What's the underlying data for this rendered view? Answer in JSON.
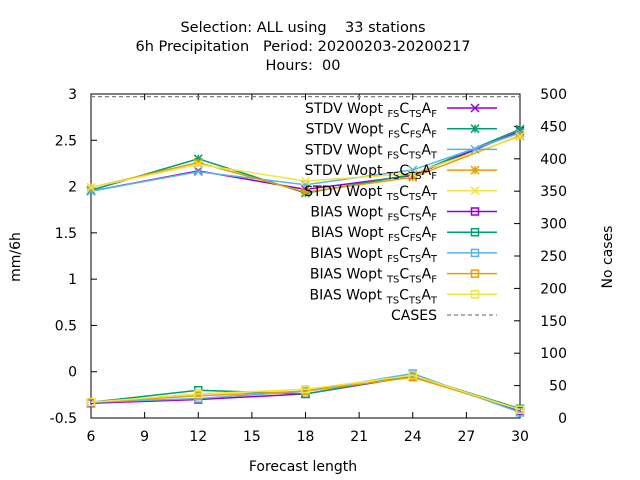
{
  "chart_data": {
    "type": "line",
    "title_lines": [
      "Selection: ALL using    33 stations",
      "6h Precipitation   Period: 20200203-20200217",
      "Hours:  00"
    ],
    "xlabel": "Forecast length",
    "ylabel": "mm/6h",
    "y2label": "No cases",
    "x": [
      6,
      12,
      18,
      24,
      30
    ],
    "xlim": [
      6,
      30
    ],
    "ylim": [
      -0.5,
      3
    ],
    "y2lim": [
      0,
      500
    ],
    "xticks": [
      6,
      9,
      12,
      15,
      18,
      21,
      24,
      27,
      30
    ],
    "yticks": [
      -0.5,
      0,
      0.5,
      1,
      1.5,
      2,
      2.5,
      3
    ],
    "y2ticks": [
      0,
      50,
      100,
      150,
      200,
      250,
      300,
      350,
      400,
      450,
      500
    ],
    "ytick_labels": [
      "-0.5",
      "0",
      "0.5",
      "1",
      "1.5",
      "2",
      "2.5",
      "3"
    ],
    "legend_position": "top-right",
    "series": [
      {
        "name": "STDV Wopt",
        "sub1": "FS",
        "mid": "C",
        "sub2": "TS",
        "last": "A",
        "sub3": "F",
        "color": "#9400d3",
        "marker": "x",
        "axis": "y",
        "values": [
          1.95,
          2.17,
          1.97,
          2.12,
          2.6
        ]
      },
      {
        "name": "STDV Wopt",
        "sub1": "FS",
        "mid": "C",
        "sub2": "FS",
        "last": "A",
        "sub3": "F",
        "color": "#009e73",
        "marker": "star",
        "axis": "y",
        "values": [
          1.96,
          2.3,
          1.93,
          2.13,
          2.62
        ]
      },
      {
        "name": "STDV Wopt",
        "sub1": "FS",
        "mid": "C",
        "sub2": "TS",
        "last": "A",
        "sub3": "T",
        "color": "#56b4e9",
        "marker": "x",
        "axis": "y",
        "values": [
          1.95,
          2.16,
          2.02,
          2.18,
          2.58
        ]
      },
      {
        "name": "STDV Wopt",
        "sub1": "TS",
        "mid": "C",
        "sub2": "TS",
        "last": "A",
        "sub3": "F",
        "color": "#e69f00",
        "marker": "star",
        "axis": "y",
        "values": [
          1.99,
          2.26,
          1.94,
          2.1,
          2.55
        ]
      },
      {
        "name": "STDV Wopt",
        "sub1": "TS",
        "mid": "C",
        "sub2": "TS",
        "last": "A",
        "sub3": "T",
        "color": "#f0e442",
        "marker": "x",
        "axis": "y",
        "values": [
          1.99,
          2.24,
          2.06,
          2.14,
          2.54
        ]
      },
      {
        "name": "BIAS Wopt",
        "sub1": "FS",
        "mid": "C",
        "sub2": "TS",
        "last": "A",
        "sub3": "F",
        "color": "#9400d3",
        "marker": "square",
        "axis": "y",
        "values": [
          -0.34,
          -0.3,
          -0.24,
          -0.05,
          -0.42
        ]
      },
      {
        "name": "BIAS Wopt",
        "sub1": "FS",
        "mid": "C",
        "sub2": "FS",
        "last": "A",
        "sub3": "F",
        "color": "#009e73",
        "marker": "square",
        "axis": "y",
        "values": [
          -0.33,
          -0.2,
          -0.24,
          -0.04,
          -0.4
        ]
      },
      {
        "name": "BIAS Wopt",
        "sub1": "FS",
        "mid": "C",
        "sub2": "TS",
        "last": "A",
        "sub3": "T",
        "color": "#56b4e9",
        "marker": "square",
        "axis": "y",
        "values": [
          -0.33,
          -0.29,
          -0.21,
          -0.02,
          -0.44
        ]
      },
      {
        "name": "BIAS Wopt",
        "sub1": "TS",
        "mid": "C",
        "sub2": "TS",
        "last": "A",
        "sub3": "F",
        "color": "#e69f00",
        "marker": "square",
        "axis": "y",
        "values": [
          -0.33,
          -0.26,
          -0.21,
          -0.06,
          -0.41
        ]
      },
      {
        "name": "BIAS Wopt",
        "sub1": "TS",
        "mid": "C",
        "sub2": "TS",
        "last": "A",
        "sub3": "T",
        "color": "#f0e442",
        "marker": "square",
        "axis": "y",
        "values": [
          -0.33,
          -0.24,
          -0.19,
          -0.04,
          -0.41
        ]
      },
      {
        "name": "CASES",
        "color": "#808080",
        "marker": "none",
        "dashed": true,
        "axis": "y2",
        "values": [
          496,
          496,
          496,
          496,
          496
        ]
      }
    ]
  }
}
